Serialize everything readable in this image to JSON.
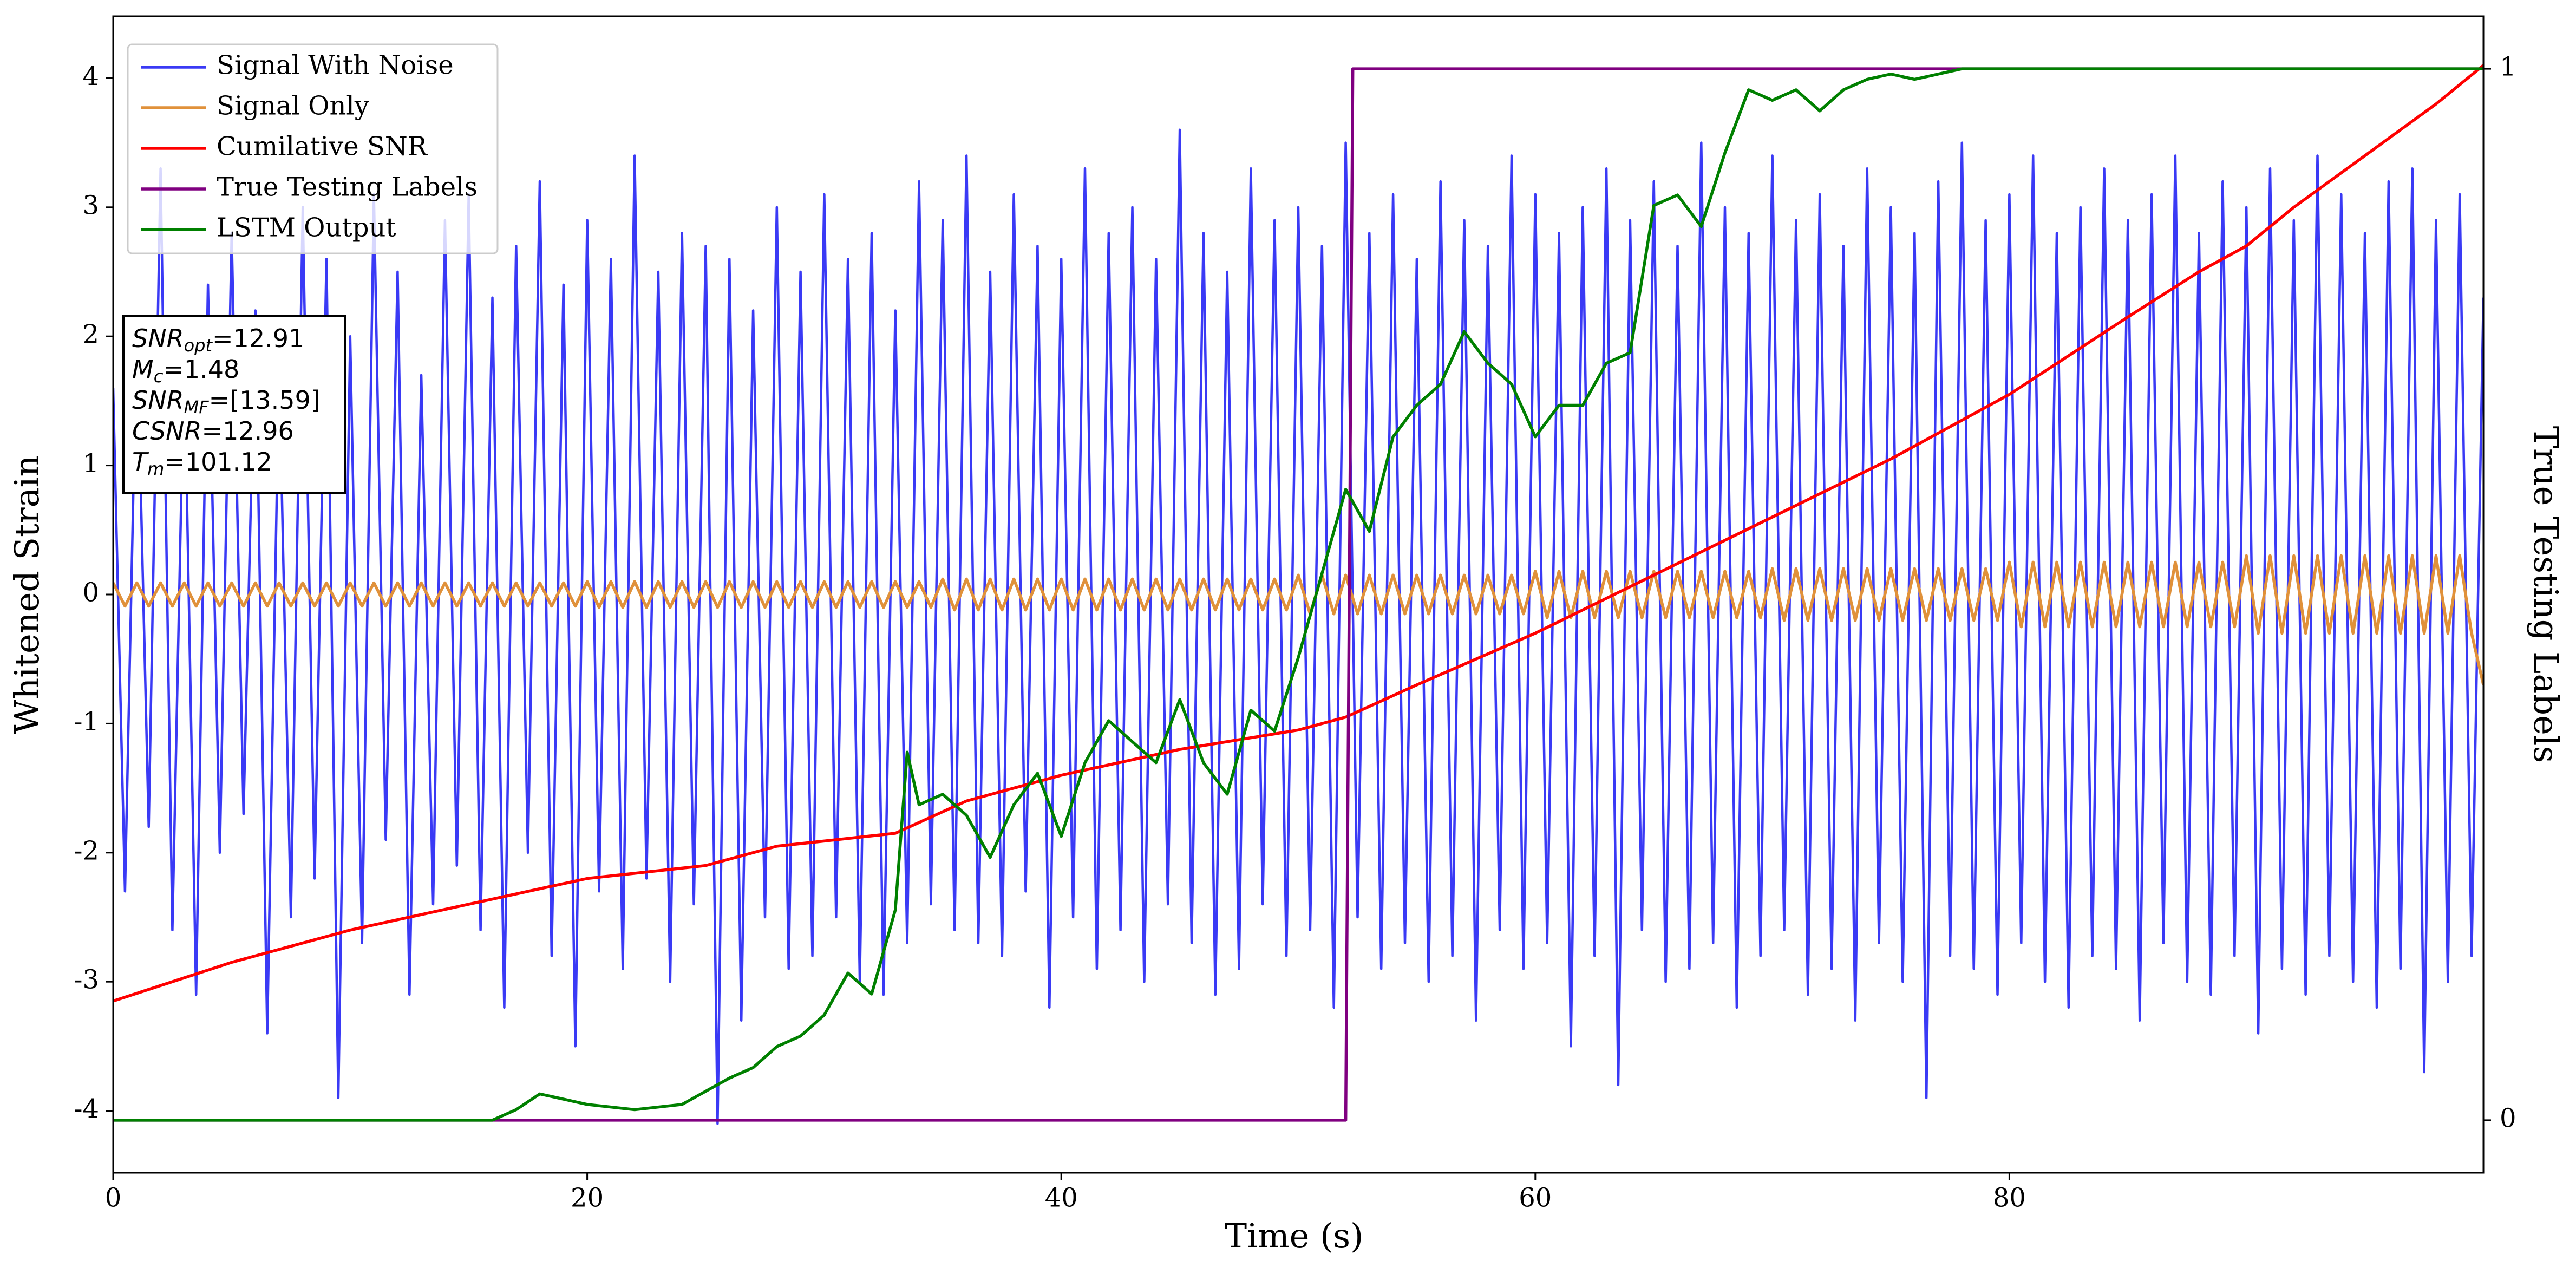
{
  "chart_data": {
    "type": "line",
    "xlabel": "Time (s)",
    "ylabel": "Whitened Strain",
    "y2label": "True Testing Labels",
    "xlim": [
      0,
      100
    ],
    "xticks": [
      0,
      20,
      40,
      60,
      80
    ],
    "ylim": [
      -4.48,
      4.48
    ],
    "yticks": [
      -4,
      -3,
      -2,
      -1,
      0,
      1,
      2,
      3,
      4
    ],
    "y2lim": [
      -0.05,
      1.05
    ],
    "y2ticks": [
      0,
      1
    ],
    "legend": "upper left",
    "x": [
      0,
      0.5,
      1,
      1.5,
      2,
      2.5,
      3,
      3.5,
      4,
      4.5,
      5,
      5.5,
      6,
      6.5,
      7,
      7.5,
      8,
      8.5,
      9,
      9.5,
      10,
      10.5,
      11,
      11.5,
      12,
      12.5,
      13,
      13.5,
      14,
      14.5,
      15,
      15.5,
      16,
      16.5,
      17,
      17.5,
      18,
      18.5,
      19,
      19.5,
      20,
      20.5,
      21,
      21.5,
      22,
      22.5,
      23,
      23.5,
      24,
      24.5,
      25,
      25.5,
      26,
      26.5,
      27,
      27.5,
      28,
      28.5,
      29,
      29.5,
      30,
      30.5,
      31,
      31.5,
      32,
      32.5,
      33,
      33.5,
      34,
      34.5,
      35,
      35.5,
      36,
      36.5,
      37,
      37.5,
      38,
      38.5,
      39,
      39.5,
      40,
      40.5,
      41,
      41.5,
      42,
      42.5,
      43,
      43.5,
      44,
      44.5,
      45,
      45.5,
      46,
      46.5,
      47,
      47.5,
      48,
      48.5,
      49,
      49.5,
      50,
      50.5,
      51,
      51.5,
      52,
      52.5,
      53,
      53.5,
      54,
      54.5,
      55,
      55.5,
      56,
      56.5,
      57,
      57.5,
      58,
      58.5,
      59,
      59.5,
      60,
      60.5,
      61,
      61.5,
      62,
      62.5,
      63,
      63.5,
      64,
      64.5,
      65,
      65.5,
      66,
      66.5,
      67,
      67.5,
      68,
      68.5,
      69,
      69.5,
      70,
      70.5,
      71,
      71.5,
      72,
      72.5,
      73,
      73.5,
      74,
      74.5,
      75,
      75.5,
      76,
      76.5,
      77,
      77.5,
      78,
      78.5,
      79,
      79.5,
      80,
      80.5,
      81,
      81.5,
      82,
      82.5,
      83,
      83.5,
      84,
      84.5,
      85,
      85.5,
      86,
      86.5,
      87,
      87.5,
      88,
      88.5,
      89,
      89.5,
      90,
      90.5,
      91,
      91.5,
      92,
      92.5,
      93,
      93.5,
      94,
      94.5,
      95,
      95.5,
      96,
      96.5,
      97,
      97.5,
      98,
      98.5,
      99,
      99.5,
      100
    ],
    "series": [
      {
        "name": "Signal With Noise",
        "color": "#3a3af5",
        "axis": "y",
        "values": [
          1.6,
          -2.3,
          2.1,
          -1.8,
          3.3,
          -2.6,
          1.9,
          -3.1,
          2.4,
          -2.0,
          2.8,
          -1.7,
          2.2,
          -3.4,
          1.8,
          -2.5,
          3.0,
          -2.2,
          2.6,
          -3.9,
          2.0,
          -2.7,
          3.1,
          -1.9,
          2.5,
          -3.1,
          1.7,
          -2.4,
          2.9,
          -2.1,
          3.1,
          -2.6,
          2.3,
          -3.2,
          2.7,
          -2.0,
          3.2,
          -2.8,
          2.4,
          -3.5,
          2.9,
          -2.3,
          2.6,
          -2.9,
          3.4,
          -2.2,
          2.5,
          -3.0,
          2.8,
          -2.4,
          2.7,
          -4.1,
          2.6,
          -3.3,
          2.2,
          -2.5,
          3.0,
          -2.9,
          2.5,
          -2.8,
          3.1,
          -2.5,
          2.6,
          -3.0,
          2.8,
          -3.1,
          2.2,
          -2.7,
          3.2,
          -2.4,
          2.9,
          -2.6,
          3.4,
          -2.7,
          2.5,
          -2.8,
          3.1,
          -2.3,
          2.7,
          -3.2,
          2.6,
          -2.5,
          3.3,
          -2.9,
          2.8,
          -2.6,
          3.0,
          -3.0,
          2.6,
          -2.4,
          3.6,
          -2.7,
          2.8,
          -3.1,
          2.5,
          -2.9,
          3.3,
          -2.4,
          2.9,
          -2.8,
          3.0,
          -2.6,
          2.7,
          -3.2,
          3.5,
          -2.5,
          2.8,
          -2.9,
          3.1,
          -2.7,
          2.6,
          -3.0,
          3.2,
          -2.8,
          2.9,
          -3.3,
          2.7,
          -2.6,
          3.4,
          -2.9,
          3.1,
          -2.7,
          2.8,
          -3.5,
          3.0,
          -2.8,
          3.3,
          -3.8,
          2.9,
          -2.6,
          3.2,
          -3.0,
          2.7,
          -2.9,
          3.5,
          -2.7,
          3.0,
          -3.2,
          2.8,
          -2.8,
          3.4,
          -2.6,
          2.9,
          -3.1,
          3.1,
          -2.9,
          2.7,
          -3.3,
          3.3,
          -2.7,
          3.0,
          -3.0,
          2.8,
          -3.9,
          3.2,
          -2.8,
          3.5,
          -2.9,
          2.9,
          -3.1,
          3.1,
          -2.7,
          3.4,
          -3.0,
          2.8,
          -3.2,
          3.0,
          -2.8,
          3.3,
          -2.9,
          2.9,
          -3.3,
          3.1,
          -2.7,
          3.4,
          -3.0,
          2.8,
          -3.1,
          3.2,
          -2.8,
          3.0,
          -3.4,
          3.3,
          -2.9,
          2.9,
          -3.1,
          3.4,
          -2.8,
          3.1,
          -3.0,
          2.8,
          -3.2,
          3.2,
          -2.9,
          3.3,
          -3.7,
          2.9,
          -3.0,
          3.1,
          -2.8,
          2.3
        ]
      },
      {
        "name": "Signal Only",
        "color": "#e0913a",
        "axis": "y",
        "values": [
          0.09,
          -0.09,
          0.09,
          -0.09,
          0.09,
          -0.09,
          0.09,
          -0.09,
          0.09,
          -0.09,
          0.09,
          -0.09,
          0.09,
          -0.09,
          0.09,
          -0.09,
          0.09,
          -0.09,
          0.09,
          -0.09,
          0.09,
          -0.09,
          0.09,
          -0.09,
          0.09,
          -0.09,
          0.09,
          -0.09,
          0.09,
          -0.09,
          0.09,
          -0.09,
          0.09,
          -0.09,
          0.09,
          -0.09,
          0.09,
          -0.09,
          0.09,
          -0.09,
          0.1,
          -0.1,
          0.1,
          -0.1,
          0.1,
          -0.1,
          0.1,
          -0.1,
          0.1,
          -0.1,
          0.1,
          -0.1,
          0.1,
          -0.1,
          0.1,
          -0.1,
          0.1,
          -0.1,
          0.1,
          -0.1,
          0.1,
          -0.1,
          0.1,
          -0.1,
          0.1,
          -0.1,
          0.1,
          -0.1,
          0.1,
          -0.1,
          0.12,
          -0.12,
          0.12,
          -0.12,
          0.12,
          -0.12,
          0.12,
          -0.12,
          0.12,
          -0.12,
          0.12,
          -0.12,
          0.12,
          -0.12,
          0.12,
          -0.12,
          0.12,
          -0.12,
          0.12,
          -0.12,
          0.12,
          -0.12,
          0.12,
          -0.12,
          0.12,
          -0.12,
          0.12,
          -0.12,
          0.12,
          -0.12,
          0.15,
          -0.15,
          0.15,
          -0.15,
          0.15,
          -0.15,
          0.15,
          -0.15,
          0.15,
          -0.15,
          0.15,
          -0.15,
          0.15,
          -0.15,
          0.15,
          -0.15,
          0.15,
          -0.15,
          0.15,
          -0.15,
          0.18,
          -0.18,
          0.18,
          -0.18,
          0.18,
          -0.18,
          0.18,
          -0.18,
          0.18,
          -0.18,
          0.18,
          -0.18,
          0.18,
          -0.18,
          0.18,
          -0.18,
          0.18,
          -0.18,
          0.18,
          -0.18,
          0.2,
          -0.2,
          0.2,
          -0.2,
          0.2,
          -0.2,
          0.2,
          -0.2,
          0.2,
          -0.2,
          0.2,
          -0.2,
          0.2,
          -0.2,
          0.2,
          -0.2,
          0.2,
          -0.2,
          0.2,
          -0.2,
          0.25,
          -0.25,
          0.25,
          -0.25,
          0.25,
          -0.25,
          0.25,
          -0.25,
          0.25,
          -0.25,
          0.25,
          -0.25,
          0.25,
          -0.25,
          0.25,
          -0.25,
          0.25,
          -0.25,
          0.25,
          -0.25,
          0.3,
          -0.3,
          0.3,
          -0.3,
          0.3,
          -0.3,
          0.3,
          -0.3,
          0.3,
          -0.3,
          0.3,
          -0.3,
          0.3,
          -0.3,
          0.3,
          -0.3,
          0.3,
          -0.3,
          0.3,
          -0.3,
          -0.7
        ]
      },
      {
        "name": "Cumilative SNR",
        "color": "#ff0000",
        "axis": "y",
        "x": [
          0,
          5,
          10,
          15,
          20,
          25,
          28,
          33,
          36,
          40,
          45,
          50,
          52,
          55,
          60,
          65,
          70,
          75,
          80,
          85,
          88,
          90,
          92,
          95,
          98,
          100
        ],
        "values": [
          -3.15,
          -2.85,
          -2.6,
          -2.4,
          -2.2,
          -2.1,
          -1.95,
          -1.85,
          -1.6,
          -1.4,
          -1.2,
          -1.05,
          -0.95,
          -0.7,
          -0.3,
          0.15,
          0.6,
          1.05,
          1.55,
          2.15,
          2.5,
          2.7,
          3.0,
          3.4,
          3.8,
          4.1
        ]
      },
      {
        "name": "True Testing Labels",
        "color": "#800080",
        "axis": "y2",
        "x": [
          0,
          52,
          52.3,
          100
        ],
        "values": [
          0,
          0,
          1,
          1
        ]
      },
      {
        "name": "LSTM Output",
        "color": "#008000",
        "axis": "y2",
        "x": [
          0,
          16,
          17,
          18,
          19,
          20,
          22,
          24,
          26,
          27,
          28,
          29,
          30,
          31,
          32,
          33,
          33.5,
          34,
          35,
          36,
          37,
          38,
          39,
          40,
          41,
          42,
          43,
          44,
          45,
          46,
          47,
          48,
          49,
          50,
          51,
          52,
          53,
          54,
          55,
          56,
          57,
          58,
          59,
          60,
          61,
          62,
          63,
          64,
          65,
          66,
          67,
          68,
          69,
          70,
          71,
          72,
          73,
          74,
          75,
          76,
          78,
          80,
          100
        ],
        "values": [
          0,
          0,
          0.01,
          0.025,
          0.02,
          0.015,
          0.01,
          0.015,
          0.04,
          0.05,
          0.07,
          0.08,
          0.1,
          0.14,
          0.12,
          0.2,
          0.35,
          0.3,
          0.31,
          0.29,
          0.25,
          0.3,
          0.33,
          0.27,
          0.34,
          0.38,
          0.36,
          0.34,
          0.4,
          0.34,
          0.31,
          0.39,
          0.37,
          0.44,
          0.52,
          0.6,
          0.56,
          0.65,
          0.68,
          0.7,
          0.75,
          0.72,
          0.7,
          0.65,
          0.68,
          0.68,
          0.72,
          0.73,
          0.87,
          0.88,
          0.85,
          0.92,
          0.98,
          0.97,
          0.98,
          0.96,
          0.98,
          0.99,
          0.995,
          0.99,
          1.0,
          1.0,
          1.0
        ]
      }
    ],
    "annotations": [
      {
        "text": "SNR",
        "sub": "opt",
        "rest": "=12.91"
      },
      {
        "text": "M",
        "sub": "c",
        "rest": "=1.48"
      },
      {
        "text": "SNR",
        "sub": "MF",
        "rest": "=[13.59]"
      },
      {
        "text": "CSNR",
        "rest": "=12.96"
      },
      {
        "text": "T",
        "sub": "m",
        "rest": "=101.12"
      }
    ]
  }
}
